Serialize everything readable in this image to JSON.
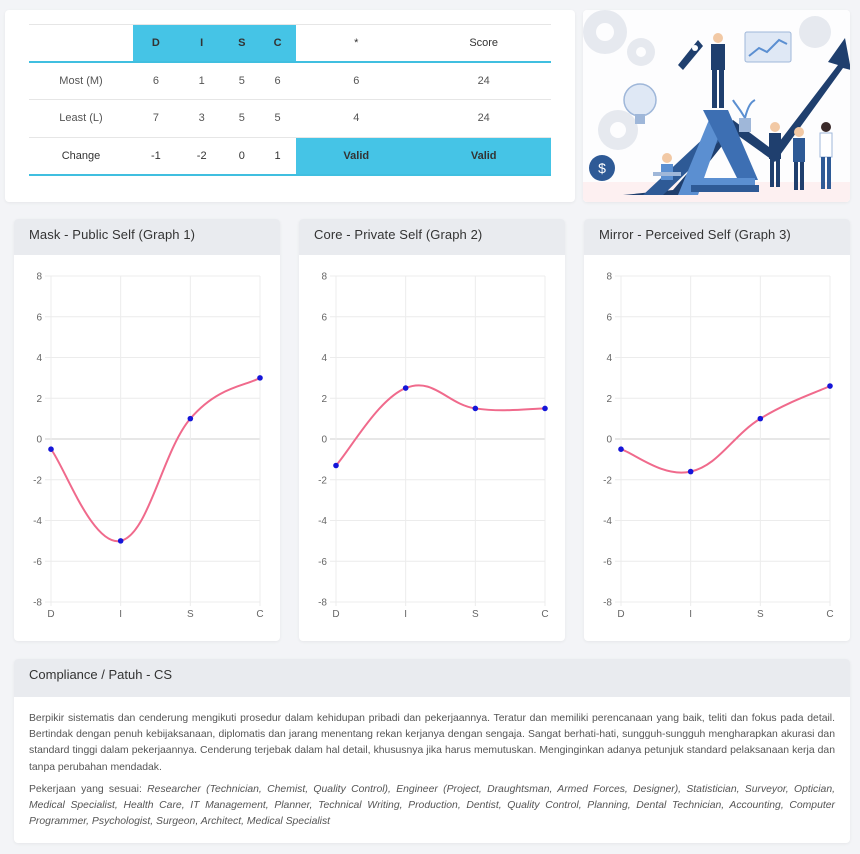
{
  "disc_table": {
    "headers": [
      "",
      "D",
      "I",
      "S",
      "C",
      "*",
      "Score"
    ],
    "rows": [
      {
        "label": "Most (M)",
        "values": [
          "6",
          "1",
          "5",
          "6",
          "6",
          "24"
        ]
      },
      {
        "label": "Least (L)",
        "values": [
          "7",
          "3",
          "5",
          "5",
          "4",
          "24"
        ]
      },
      {
        "label": "Change",
        "values": [
          "-1",
          "-2",
          "0",
          "1",
          "Valid",
          "Valid"
        ]
      }
    ]
  },
  "graphs": [
    {
      "title": "Mask - Public Self (Graph 1)"
    },
    {
      "title": "Core - Private Self (Graph 2)"
    },
    {
      "title": "Mirror - Perceived Self (Graph 3)"
    }
  ],
  "chart_data": [
    {
      "type": "line",
      "title": "Mask - Public Self (Graph 1)",
      "categories": [
        "D",
        "I",
        "S",
        "C"
      ],
      "values": [
        -0.5,
        -5,
        1,
        3
      ],
      "ylim": [
        -8,
        8
      ],
      "yticks": [
        "8",
        "6",
        "4",
        "2",
        "0",
        "-2",
        "-4",
        "-6",
        "-8"
      ],
      "grid": true,
      "line_color": "#f06a8c",
      "point_color": "#1515d8"
    },
    {
      "type": "line",
      "title": "Core - Private Self (Graph 2)",
      "categories": [
        "D",
        "I",
        "S",
        "C"
      ],
      "values": [
        -1.3,
        2.5,
        1.5,
        1.5
      ],
      "ylim": [
        -8,
        8
      ],
      "yticks": [
        "8",
        "6",
        "4",
        "2",
        "0",
        "-2",
        "-4",
        "-6",
        "-8"
      ],
      "grid": true,
      "line_color": "#f06a8c",
      "point_color": "#1515d8"
    },
    {
      "type": "line",
      "title": "Mirror - Perceived Self (Graph 3)",
      "categories": [
        "D",
        "I",
        "S",
        "C"
      ],
      "values": [
        -0.5,
        -1.6,
        1,
        2.6
      ],
      "ylim": [
        -8,
        8
      ],
      "yticks": [
        "8",
        "6",
        "4",
        "2",
        "0",
        "-2",
        "-4",
        "-6",
        "-8"
      ],
      "grid": true,
      "line_color": "#f06a8c",
      "point_color": "#1515d8"
    }
  ],
  "compliance": {
    "title": "Compliance / Patuh - CS",
    "description": "Berpikir sistematis dan cenderung mengikuti prosedur dalam kehidupan pribadi dan pekerjaannya. Teratur dan memiliki perencanaan yang baik, teliti dan fokus pada detail. Bertindak dengan penuh kebijaksanaan, diplomatis dan jarang menentang rekan kerjanya dengan sengaja. Sangat berhati-hati, sungguh-sungguh mengharapkan akurasi dan standard tinggi dalam pekerjaannya. Cenderung terjebak dalam hal detail, khususnya jika harus memutuskan. Menginginkan adanya petunjuk standard pelaksanaan kerja dan tanpa perubahan mendadak.",
    "jobs_label": "Pekerjaan yang sesuai:",
    "jobs": "Researcher (Technician, Chemist, Quality Control), Engineer (Project, Draughtsman, Armed Forces, Designer), Statistician, Surveyor, Optician, Medical Specialist, Health Care, IT Management, Planner, Technical Writing, Production, Dentist, Quality Control, Planning, Dental Technician, Accounting, Computer Programmer, Psychologist, Surgeon, Architect, Medical Specialist"
  },
  "colors": {
    "accent": "#45c4e6",
    "line": "#f06a8c",
    "point": "#1515d8"
  }
}
